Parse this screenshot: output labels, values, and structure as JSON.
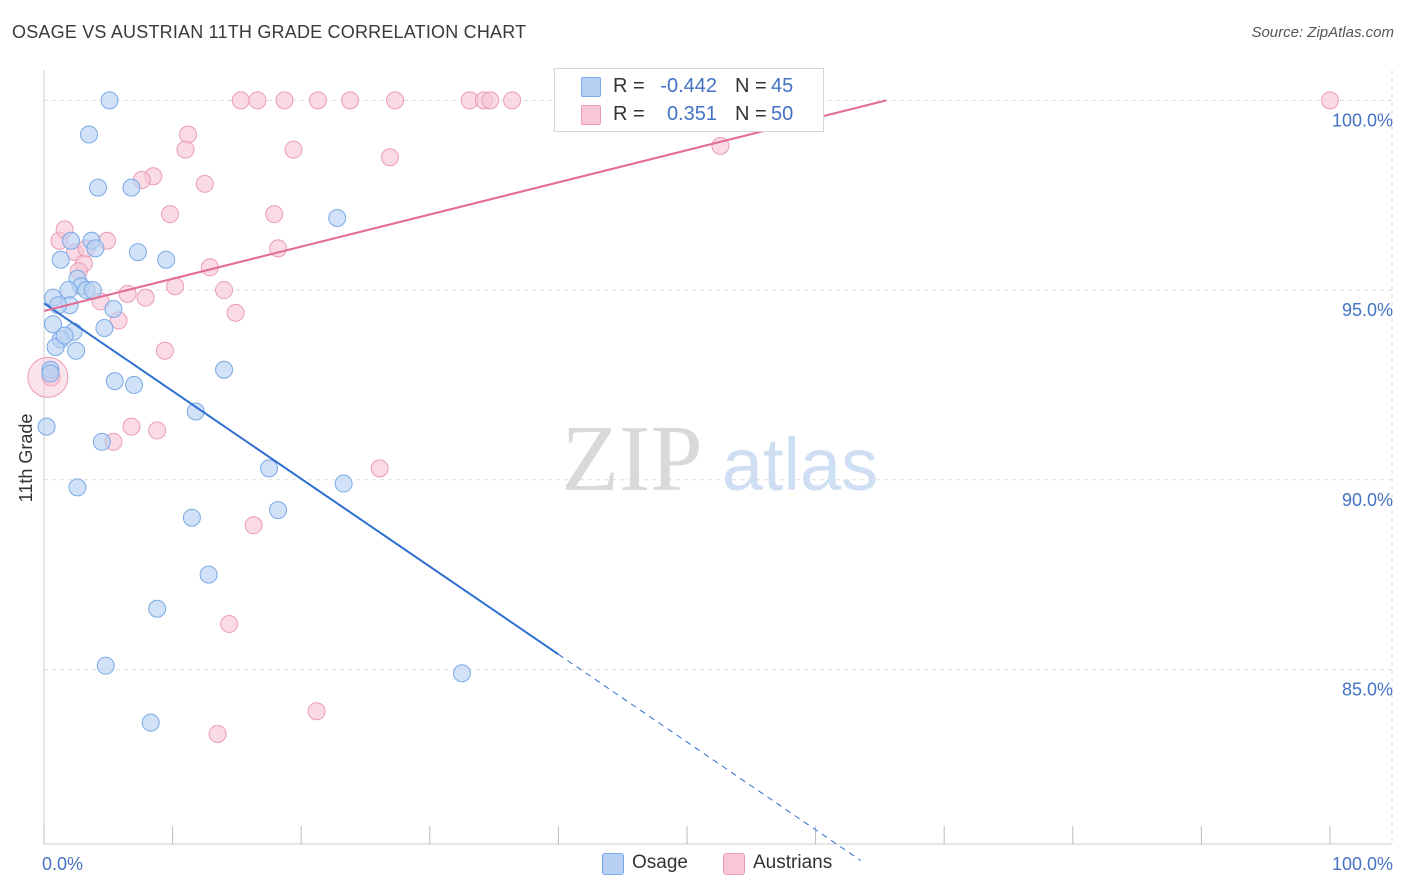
{
  "header": {
    "title": "OSAGE VS AUSTRIAN 11TH GRADE CORRELATION CHART",
    "source": "Source: ZipAtlas.com"
  },
  "watermark": {
    "zip": "ZIP",
    "atlas": "atlas"
  },
  "colors": {
    "osage": "#7aaae6",
    "osage_fill": "#b8d1f3",
    "osage_line": "#2f6fcf",
    "austrians": "#ec9bb6",
    "austrians_fill": "#f8c7d7",
    "austrians_line": "#e06b93",
    "tick_text": "#4472c4",
    "grid": "#dddddd"
  },
  "legend": {
    "osage": {
      "r_label": "R =",
      "r_value": "-0.442",
      "n_label": "N =",
      "n_value": "45"
    },
    "austrians": {
      "r_label": "R =",
      "r_value": "0.351",
      "n_label": "N =",
      "n_value": "50"
    }
  },
  "chart_data": {
    "type": "scatter",
    "title": "OSAGE VS AUSTRIAN 11TH GRADE CORRELATION CHART",
    "xlabel": "",
    "ylabel": "11th Grade",
    "xlim": [
      0,
      100
    ],
    "ylim": [
      80.4,
      100.8
    ],
    "x_tick_labels": [
      "0.0%",
      "100.0%"
    ],
    "y_ticks": [
      85.0,
      90.0,
      95.0,
      100.0
    ],
    "y_tick_labels": [
      "85.0%",
      "90.0%",
      "95.0%",
      "100.0%"
    ],
    "grid": true,
    "legend_position": "top-center",
    "series": [
      {
        "name": "Osage",
        "r": -0.442,
        "n": 45,
        "trend": {
          "x0": 0.0,
          "y0": 94.65,
          "x1": 40.0,
          "y1": 85.4,
          "dashed_to_x": 63.5
        },
        "points": [
          [
            5.1,
            100.0
          ],
          [
            3.5,
            99.1
          ],
          [
            4.2,
            97.7
          ],
          [
            6.8,
            97.7
          ],
          [
            22.8,
            96.9
          ],
          [
            3.7,
            96.3
          ],
          [
            2.1,
            96.3
          ],
          [
            7.3,
            96.0
          ],
          [
            9.5,
            95.8
          ],
          [
            1.3,
            95.8
          ],
          [
            4.0,
            96.1
          ],
          [
            2.6,
            95.3
          ],
          [
            2.9,
            95.1
          ],
          [
            3.3,
            95.0
          ],
          [
            1.9,
            95.0
          ],
          [
            0.7,
            94.8
          ],
          [
            2.0,
            94.6
          ],
          [
            1.1,
            94.6
          ],
          [
            5.4,
            94.5
          ],
          [
            0.7,
            94.1
          ],
          [
            4.7,
            94.0
          ],
          [
            2.3,
            93.9
          ],
          [
            1.3,
            93.7
          ],
          [
            0.9,
            93.5
          ],
          [
            2.5,
            93.4
          ],
          [
            14.0,
            92.9
          ],
          [
            0.5,
            92.9
          ],
          [
            5.5,
            92.6
          ],
          [
            7.0,
            92.5
          ],
          [
            11.8,
            91.8
          ],
          [
            0.2,
            91.4
          ],
          [
            4.5,
            91.0
          ],
          [
            17.5,
            90.3
          ],
          [
            23.3,
            89.9
          ],
          [
            2.6,
            89.8
          ],
          [
            18.2,
            89.2
          ],
          [
            11.5,
            89.0
          ],
          [
            12.8,
            87.5
          ],
          [
            8.8,
            86.6
          ],
          [
            4.8,
            85.1
          ],
          [
            32.5,
            84.9
          ],
          [
            8.3,
            83.6
          ],
          [
            0.5,
            92.8
          ],
          [
            1.6,
            93.8
          ],
          [
            3.8,
            95.0
          ]
        ]
      },
      {
        "name": "Austrians",
        "r": 0.351,
        "n": 50,
        "trend": {
          "x0": 0.0,
          "y0": 94.45,
          "x1": 65.5,
          "y1": 100.0
        },
        "points": [
          [
            15.3,
            100.0
          ],
          [
            16.6,
            100.0
          ],
          [
            18.7,
            100.0
          ],
          [
            21.3,
            100.0
          ],
          [
            23.8,
            100.0
          ],
          [
            27.3,
            100.0
          ],
          [
            33.1,
            100.0
          ],
          [
            34.2,
            100.0
          ],
          [
            34.7,
            100.0
          ],
          [
            36.4,
            100.0
          ],
          [
            41.2,
            100.0
          ],
          [
            48.1,
            100.0
          ],
          [
            100.0,
            100.0
          ],
          [
            11.2,
            99.1
          ],
          [
            11.0,
            98.7
          ],
          [
            19.4,
            98.7
          ],
          [
            26.9,
            98.5
          ],
          [
            52.6,
            98.8
          ],
          [
            8.5,
            98.0
          ],
          [
            7.6,
            97.9
          ],
          [
            12.5,
            97.8
          ],
          [
            9.8,
            97.0
          ],
          [
            17.9,
            97.0
          ],
          [
            18.2,
            96.1
          ],
          [
            1.2,
            96.3
          ],
          [
            4.9,
            96.3
          ],
          [
            1.6,
            96.6
          ],
          [
            2.4,
            96.0
          ],
          [
            3.1,
            95.7
          ],
          [
            12.9,
            95.6
          ],
          [
            2.7,
            95.5
          ],
          [
            10.2,
            95.1
          ],
          [
            6.5,
            94.9
          ],
          [
            14.0,
            95.0
          ],
          [
            7.9,
            94.8
          ],
          [
            4.4,
            94.7
          ],
          [
            14.9,
            94.4
          ],
          [
            5.8,
            94.2
          ],
          [
            9.4,
            93.4
          ],
          [
            0.5,
            92.7
          ],
          [
            6.8,
            91.4
          ],
          [
            8.8,
            91.3
          ],
          [
            5.4,
            91.0
          ],
          [
            26.1,
            90.3
          ],
          [
            16.3,
            88.8
          ],
          [
            14.4,
            86.2
          ],
          [
            21.2,
            83.9
          ],
          [
            13.5,
            83.3
          ],
          [
            0.6,
            92.7
          ],
          [
            3.3,
            96.1
          ]
        ]
      }
    ]
  },
  "bottom_legend": {
    "osage_label": "Osage",
    "austrians_label": "Austrians"
  }
}
